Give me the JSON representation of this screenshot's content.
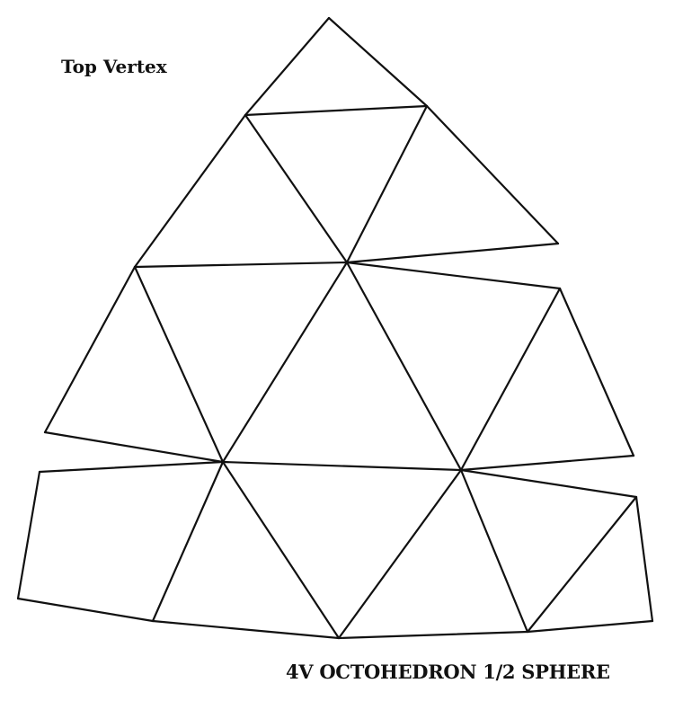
{
  "diagram": {
    "top_label": "Top Vertex",
    "caption": "4V OCTOHEDRON 1/2 SPHERE",
    "line_color": "#111111",
    "background_color": "#ffffff"
  }
}
